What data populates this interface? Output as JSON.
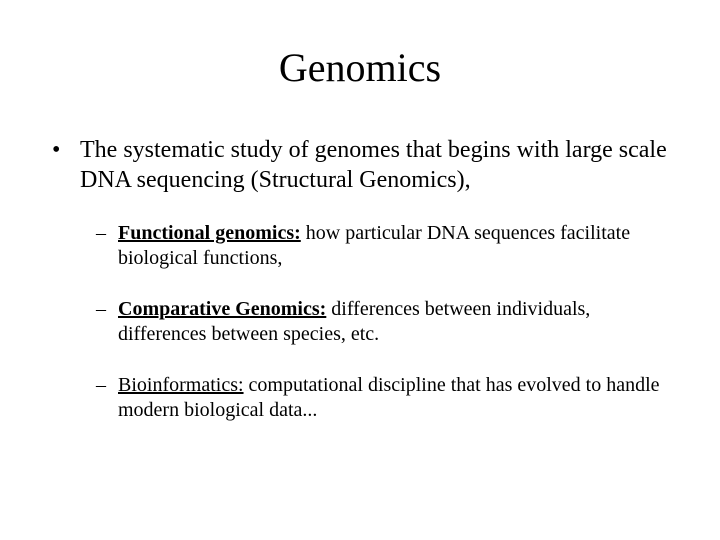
{
  "slide": {
    "title": "Genomics",
    "background_color": "#ffffff",
    "text_color": "#000000",
    "font_family": "Times New Roman",
    "title_fontsize": 40,
    "body_fontsize": 24,
    "sub_fontsize": 20,
    "main_bullet_marker": "•",
    "sub_bullet_marker": "–",
    "main": {
      "text": "The systematic study of genomes that begins with large scale DNA sequencing (Structural Genomics),"
    },
    "subs": [
      {
        "lead": "Functional genomics:",
        "rest": " how particular DNA sequences facilitate biological functions,"
      },
      {
        "lead": "Comparative Genomics:",
        "rest": " differences between individuals, differences between species, etc."
      },
      {
        "lead": "Bioinformatics:",
        "rest": " computational discipline that has evolved to handle modern biological data..."
      }
    ]
  }
}
